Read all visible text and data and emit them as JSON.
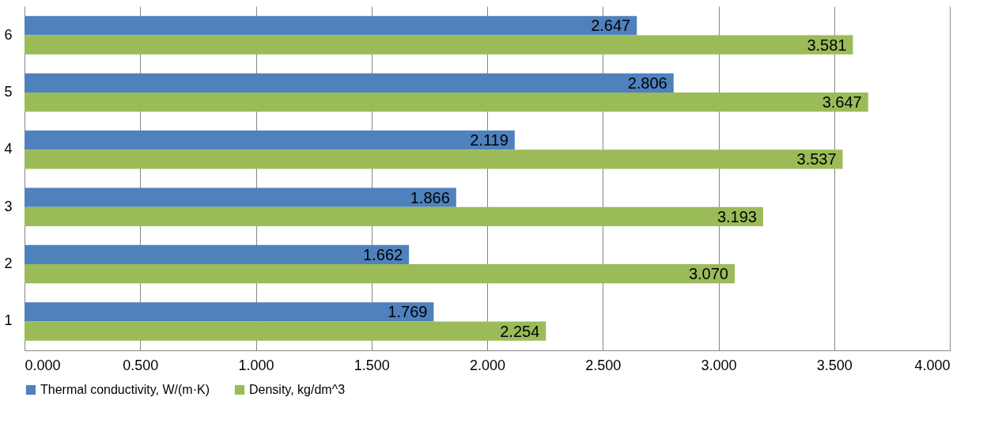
{
  "chart_data": {
    "type": "bar",
    "orientation": "horizontal",
    "categories": [
      "6",
      "5",
      "4",
      "3",
      "2",
      "1"
    ],
    "series": [
      {
        "name": "Thermal conductivity, W/(m·K)",
        "color": "#4f81bd",
        "values": [
          2.647,
          2.806,
          2.119,
          1.866,
          1.662,
          1.769
        ],
        "value_labels": [
          "2.647",
          "2.806",
          "2.119",
          "1.866",
          "1.662",
          "1.769"
        ]
      },
      {
        "name": "Density, kg/dm^3",
        "color": "#9bbb59",
        "values": [
          3.581,
          3.647,
          3.537,
          3.193,
          3.07,
          2.254
        ],
        "value_labels": [
          "3.581",
          "3.647",
          "3.537",
          "3.193",
          "3.070",
          "2.254"
        ]
      }
    ],
    "xlim": [
      0,
      4
    ],
    "xticks": [
      {
        "value": 0,
        "label": "0.000"
      },
      {
        "value": 0.5,
        "label": "0.500"
      },
      {
        "value": 1,
        "label": "1.000"
      },
      {
        "value": 1.5,
        "label": "1.500"
      },
      {
        "value": 2,
        "label": "2.000"
      },
      {
        "value": 2.5,
        "label": "2.500"
      },
      {
        "value": 3,
        "label": "3.000"
      },
      {
        "value": 3.5,
        "label": "3.500"
      },
      {
        "value": 4,
        "label": "4.000"
      }
    ],
    "grid": "x",
    "legend": "bottom"
  }
}
